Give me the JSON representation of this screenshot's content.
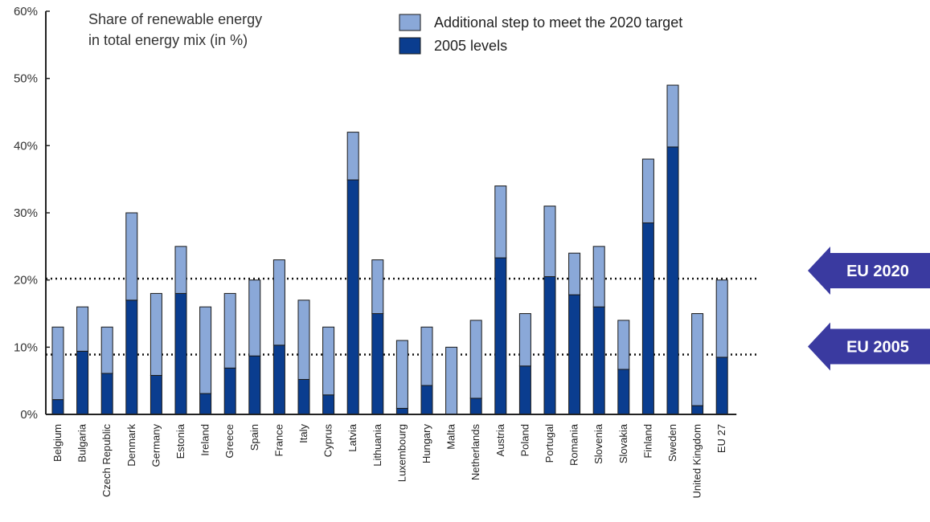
{
  "chart_data": {
    "type": "bar",
    "stacked": true,
    "title": [
      "Share of renewable energy",
      "in total energy mix (in %)"
    ],
    "categories": [
      "Belgium",
      "Bulgaria",
      "Czech Republic",
      "Denmark",
      "Germany",
      "Estonia",
      "Ireland",
      "Greece",
      "Spain",
      "France",
      "Italy",
      "Cyprus",
      "Latvia",
      "Lithuania",
      "Luxembourg",
      "Hungary",
      "Malta",
      "Netherlands",
      "Austria",
      "Poland",
      "Portugal",
      "Romania",
      "Slovenia",
      "Slovakia",
      "Finland",
      "Sweden",
      "United Kingdom",
      "EU 27"
    ],
    "series": [
      {
        "name": "2005 levels",
        "color": "#0a3d8f",
        "values": [
          2.2,
          9.4,
          6.1,
          17.0,
          5.8,
          18.0,
          3.1,
          6.9,
          8.7,
          10.3,
          5.2,
          2.9,
          34.9,
          15.0,
          0.9,
          4.3,
          0.0,
          2.4,
          23.3,
          7.2,
          20.5,
          17.8,
          16.0,
          6.7,
          28.5,
          39.8,
          1.3,
          8.5
        ]
      },
      {
        "name": "Additional step to meet the 2020 target",
        "color": "#8aa8d8",
        "values": [
          10.8,
          6.6,
          6.9,
          13.0,
          12.2,
          7.0,
          12.9,
          11.1,
          11.3,
          12.7,
          11.8,
          10.1,
          7.1,
          8.0,
          10.1,
          8.7,
          10.0,
          11.6,
          10.7,
          7.8,
          10.5,
          6.2,
          9.0,
          7.3,
          9.5,
          9.2,
          13.7,
          11.5
        ]
      }
    ],
    "totals": [
      13,
      16,
      13,
      30,
      18,
      25,
      16,
      18,
      20,
      23,
      17,
      13,
      42,
      23,
      11,
      13,
      10,
      14,
      34,
      15,
      31,
      24,
      25,
      14,
      38,
      49,
      15,
      20
    ],
    "ylim": [
      0,
      60
    ],
    "yticks": [
      "0%",
      "10%",
      "20%",
      "30%",
      "40%",
      "50%",
      "60%"
    ],
    "ytick_values": [
      0,
      10,
      20,
      30,
      40,
      50,
      60
    ],
    "legend": {
      "position": "top",
      "entries": [
        {
          "label": "Additional step to meet the 2020 target",
          "color": "#8aa8d8"
        },
        {
          "label": "2005 levels",
          "color": "#0a3d8f"
        }
      ]
    },
    "reference_lines": [
      {
        "label": "EU 2020",
        "value": 20.2,
        "style": "dotted"
      },
      {
        "label": "EU 2005",
        "value": 8.9,
        "style": "dotted"
      }
    ],
    "annotation_color": "#3a3aa0"
  }
}
